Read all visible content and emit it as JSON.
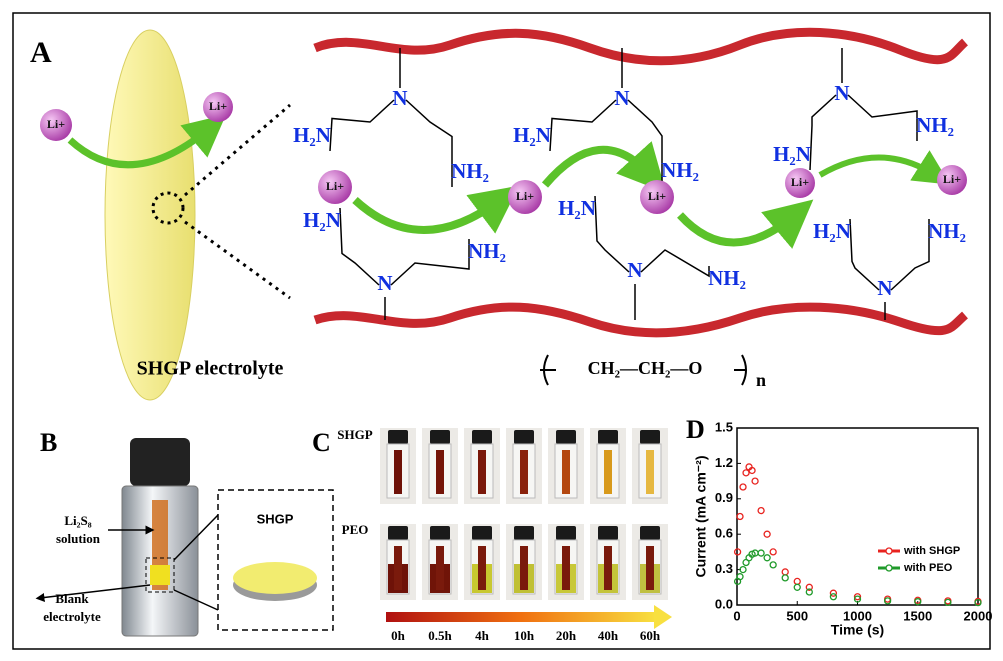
{
  "panel_a": {
    "label": "A",
    "caption": "SHGP electrolyte",
    "formula": "CH₂—CH₂—O",
    "repeat": "n",
    "ions": [
      "Li+",
      "Li+",
      "Li+",
      "Li+",
      "Li+",
      "Li+",
      "Li+"
    ],
    "nitrogens": [
      "N",
      "N",
      "N",
      "N",
      "N",
      "N"
    ],
    "amines_left": [
      "H₂N",
      "H₂N",
      "H₂N",
      "H₂N",
      "H₂N",
      "H₂N"
    ],
    "amines_right": [
      "NH₂",
      "NH₂",
      "NH₂",
      "NH₂",
      "NH₂",
      "NH₂"
    ]
  },
  "panel_b": {
    "label": "B",
    "solution": [
      "Li₂S₈",
      "solution"
    ],
    "blank": [
      "Blank",
      "electrolyte"
    ],
    "inset": "SHGP"
  },
  "panel_c": {
    "label": "C",
    "rows": [
      "SHGP",
      "PEO"
    ],
    "times": [
      "0h",
      "0.5h",
      "4h",
      "10h",
      "20h",
      "40h",
      "60h"
    ]
  },
  "chart_data": {
    "type": "scatter",
    "label": "D",
    "x_label": "Time (s)",
    "y_label": "Current (mA cm⁻²)",
    "x": [
      5,
      25,
      50,
      75,
      100,
      125,
      150,
      200,
      250,
      300,
      400,
      500,
      600,
      800,
      1000,
      1250,
      1500,
      1750,
      2000
    ],
    "series": [
      {
        "name": "with SHGP",
        "color": "#e8231f",
        "values": [
          0.45,
          0.75,
          1.0,
          1.12,
          1.17,
          1.14,
          1.05,
          0.8,
          0.6,
          0.45,
          0.28,
          0.2,
          0.15,
          0.1,
          0.07,
          0.05,
          0.04,
          0.035,
          0.03
        ]
      },
      {
        "name": "with PEO",
        "color": "#1f9a2a",
        "values": [
          0.2,
          0.24,
          0.3,
          0.36,
          0.4,
          0.43,
          0.44,
          0.44,
          0.4,
          0.34,
          0.23,
          0.15,
          0.11,
          0.07,
          0.05,
          0.035,
          0.028,
          0.022,
          0.02
        ]
      }
    ],
    "xlim": [
      0,
      2000
    ],
    "xticks": [
      0,
      500,
      1000,
      1500,
      2000
    ],
    "ylim": [
      0,
      1.5
    ],
    "yticks": [
      {
        "value": 0,
        "label": "0.0"
      },
      0.3,
      0.6,
      0.9,
      1.2,
      1.5
    ],
    "legend": "lower-right"
  }
}
